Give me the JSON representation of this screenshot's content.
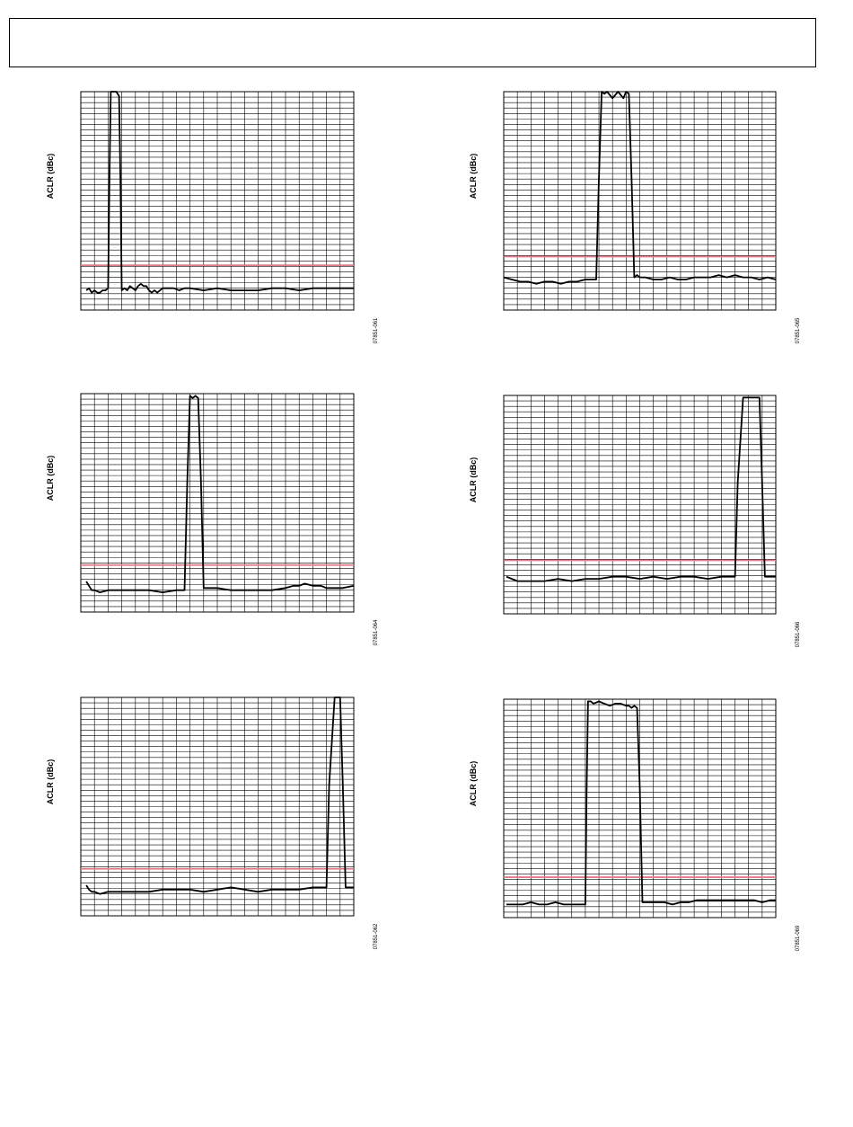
{
  "header": {},
  "colors": {
    "trace": "#000000",
    "limit": "#e07b8a",
    "grid": "#000000"
  },
  "chart_data": [
    {
      "type": "line",
      "ylabel": "ACLR (dBc)",
      "figure_code": "07851-061",
      "grid": true,
      "xlim": [
        0,
        100
      ],
      "ylim": [
        0,
        100
      ],
      "limit_line_y": 20.5,
      "series": [
        {
          "x": [
            2,
            3,
            4,
            5,
            6,
            7,
            8,
            9,
            10,
            10.5,
            11,
            13,
            14,
            14.5,
            15,
            16,
            17,
            18,
            19,
            20,
            21,
            22,
            23,
            24,
            25,
            26,
            27,
            28,
            29,
            30,
            32,
            34,
            36,
            38,
            40,
            45,
            50,
            55,
            60,
            65,
            70,
            75,
            80,
            85,
            90,
            95,
            100
          ],
          "y": [
            9,
            10,
            8,
            9,
            8,
            8,
            9,
            9,
            10,
            60,
            100,
            100,
            98,
            60,
            9,
            10,
            9,
            11,
            10,
            9,
            11,
            12,
            11,
            11,
            9,
            8,
            9,
            8,
            9,
            10,
            10,
            10,
            9,
            10,
            10,
            9,
            10,
            9,
            9,
            9,
            10,
            10,
            9,
            10,
            10,
            10,
            10
          ]
        }
      ]
    },
    {
      "type": "line",
      "ylabel": "ACLR (dBc)",
      "figure_code": "07851-065",
      "grid": true,
      "xlim": [
        0,
        100
      ],
      "ylim": [
        0,
        100
      ],
      "limit_line_y": 24.5,
      "series": [
        {
          "x": [
            0,
            3,
            6,
            9,
            12,
            15,
            18,
            21,
            24,
            27,
            30,
            33,
            34,
            35,
            36,
            37,
            38,
            40,
            42,
            44,
            45,
            46,
            47,
            48,
            49,
            50,
            52,
            55,
            58,
            61,
            64,
            67,
            70,
            73,
            76,
            79,
            82,
            85,
            88,
            91,
            94,
            97,
            100
          ],
          "y": [
            15,
            14,
            13,
            13,
            12,
            13,
            13,
            12,
            13,
            13,
            14,
            14,
            14,
            60,
            100,
            99,
            100,
            97,
            100,
            97,
            100,
            99,
            60,
            15,
            16,
            15,
            15,
            14,
            14,
            15,
            14,
            14,
            15,
            15,
            15,
            16,
            15,
            16,
            15,
            15,
            14,
            15,
            14
          ]
        }
      ]
    },
    {
      "type": "line",
      "ylabel": "ACLR (dBc)",
      "figure_code": "07851-064",
      "grid": true,
      "xlim": [
        0,
        100
      ],
      "ylim": [
        0,
        100
      ],
      "limit_line_y": 21.5,
      "series": [
        {
          "x": [
            2,
            3,
            4,
            5,
            7,
            10,
            15,
            20,
            25,
            30,
            35,
            37,
            38,
            39,
            40,
            41,
            42,
            43,
            44,
            45,
            46,
            48,
            50,
            55,
            60,
            65,
            70,
            75,
            78,
            80,
            82,
            85,
            88,
            90,
            93,
            96,
            100
          ],
          "y": [
            14,
            12,
            10,
            10,
            9,
            10,
            10,
            10,
            10,
            9,
            10,
            10,
            10,
            60,
            99,
            98,
            99,
            98,
            60,
            11,
            11,
            11,
            11,
            10,
            10,
            10,
            10,
            11,
            12,
            12,
            13,
            12,
            12,
            11,
            11,
            11,
            12
          ]
        }
      ]
    },
    {
      "type": "line",
      "ylabel": "ACLR (dBc)",
      "figure_code": "07851-066",
      "grid": true,
      "xlim": [
        0,
        100
      ],
      "ylim": [
        0,
        100
      ],
      "limit_line_y": 24.5,
      "series": [
        {
          "x": [
            1,
            3,
            5,
            8,
            10,
            15,
            20,
            25,
            30,
            35,
            40,
            45,
            50,
            55,
            60,
            65,
            70,
            75,
            80,
            84,
            85,
            86,
            88,
            90,
            94,
            95,
            96,
            97,
            100
          ],
          "y": [
            17,
            16,
            15,
            15,
            15,
            15,
            16,
            15,
            16,
            16,
            17,
            17,
            16,
            17,
            16,
            17,
            17,
            16,
            17,
            17,
            17,
            60,
            99,
            99,
            99,
            60,
            17,
            17,
            17
          ]
        }
      ]
    },
    {
      "type": "line",
      "ylabel": "ACLR (dBc)",
      "figure_code": "07851-062",
      "grid": true,
      "xlim": [
        0,
        100
      ],
      "ylim": [
        0,
        100
      ],
      "limit_line_y": 21.5,
      "series": [
        {
          "x": [
            2,
            3,
            4,
            5,
            7,
            10,
            15,
            20,
            25,
            30,
            35,
            40,
            45,
            50,
            55,
            60,
            65,
            70,
            75,
            80,
            85,
            89,
            90,
            91,
            93,
            95,
            96,
            97,
            100
          ],
          "y": [
            14,
            12,
            11,
            11,
            10,
            11,
            11,
            11,
            11,
            12,
            12,
            12,
            11,
            12,
            13,
            12,
            11,
            12,
            12,
            12,
            13,
            13,
            13,
            60,
            100,
            100,
            60,
            13,
            13
          ]
        }
      ]
    },
    {
      "type": "line",
      "ylabel": "ACLR (dBc)",
      "figure_code": "07851-069",
      "grid": true,
      "xlim": [
        0,
        100
      ],
      "ylim": [
        0,
        100
      ],
      "limit_line_y": 18.5,
      "series": [
        {
          "x": [
            1,
            4,
            7,
            10,
            13,
            16,
            19,
            22,
            25,
            28,
            30,
            30.5,
            31,
            32,
            33,
            35,
            37,
            39,
            41,
            43,
            45,
            46,
            47,
            48,
            49,
            50,
            51,
            53,
            56,
            59,
            62,
            65,
            68,
            71,
            74,
            77,
            80,
            83,
            86,
            89,
            92,
            95,
            98,
            100
          ],
          "y": [
            6,
            6,
            6,
            7,
            6,
            6,
            7,
            6,
            6,
            6,
            6,
            60,
            99,
            99,
            98,
            99,
            98,
            97,
            98,
            98,
            97,
            97,
            96,
            97,
            96,
            60,
            7,
            7,
            7,
            7,
            6,
            7,
            7,
            8,
            8,
            8,
            8,
            8,
            8,
            8,
            8,
            7,
            8,
            8
          ]
        }
      ]
    }
  ]
}
